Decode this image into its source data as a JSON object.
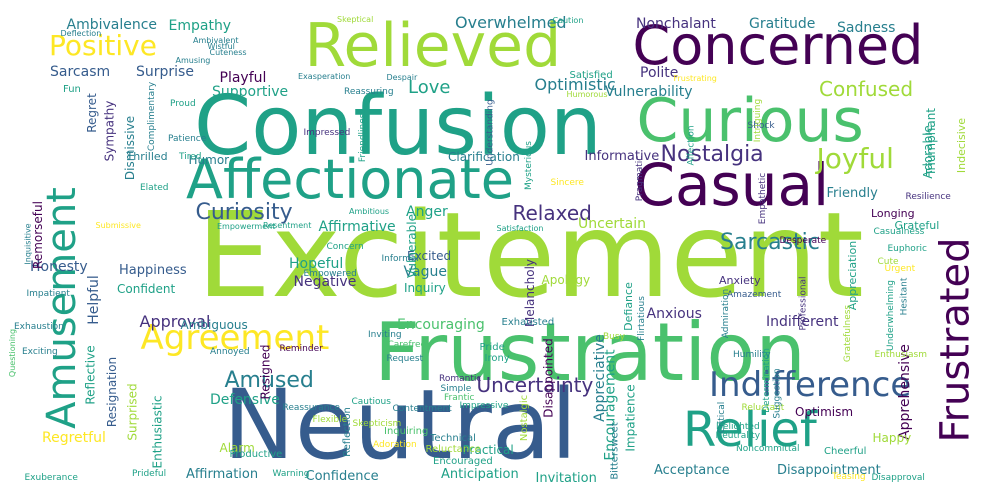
{
  "palette": {
    "background": "#ffffff",
    "colors": [
      "#440154",
      "#46327e",
      "#365c8d",
      "#277f8e",
      "#1fa187",
      "#4ac16d",
      "#a0da39",
      "#fde725"
    ]
  },
  "words": [
    "Excitement",
    "Neutral",
    "Confusion",
    "Frustration",
    "Relieved",
    "Concerned",
    "Curious",
    "Casual",
    "Affectionate",
    "Amusement",
    "Frustrated",
    "Relief",
    "Agreement",
    "Indifference",
    "Joyful",
    "Positive",
    "Curiosity",
    "Nostalgia",
    "Confused",
    "Amused",
    "Sarcastic",
    "Relaxed",
    "Uncertainty",
    "Love",
    "Optimistic",
    "Ambivalence",
    "Empathy",
    "Overwhelmed",
    "Nonchalant",
    "Gratitude",
    "Sadness",
    "Approval",
    "Encouraging",
    "Sarcasm",
    "Surprise",
    "Playful",
    "Polite",
    "Supportive",
    "Vulnerability",
    "Satisfied",
    "Affirmative",
    "Anger",
    "Uncertain",
    "Hopeful",
    "Negative",
    "Excited",
    "Vague",
    "Inquiry",
    "Honesty",
    "Happiness",
    "Confident",
    "Helpful",
    "Reflective",
    "Resignation",
    "Surprised",
    "Regretful",
    "Defensive",
    "Alarm",
    "Affirmation",
    "Confidence",
    "Anticipation",
    "Invitation",
    "Acceptance",
    "Disappointment",
    "Appreciative",
    "Encouragement",
    "Impatience",
    "Disappointed",
    "Nostalgic",
    "Anxious",
    "Indifferent",
    "Apprehensive",
    "Appreciation",
    "Anxiety",
    "Friendly",
    "Longing",
    "Grateful",
    "Happy",
    "Triumphant",
    "Adorable",
    "Indecisive",
    "Regret",
    "Sympathy",
    "Dismissive",
    "Humor",
    "Informative",
    "Clarification",
    "Practical",
    "Ambiguous",
    "Resigned",
    "Remorseful",
    "Apology",
    "Enthusiastic",
    "Optimism",
    "Cheerful",
    "Vulnerable",
    "Melancholy",
    "Defiance",
    "Exhausted",
    "Pride",
    "Irony",
    "Bittersweet",
    "Productive",
    "Reflection",
    "Inquiring",
    "Technical",
    "Reluctance",
    "Encouraged",
    "Prideful",
    "Exuberance",
    "Warning",
    "Annoyed",
    "Reminder",
    "Empowered",
    "Concern",
    "Informal",
    "Inviting",
    "Carefree",
    "Request",
    "Romantic",
    "Simple",
    "Frantic",
    "Impressive",
    "Cautious",
    "Reassurance",
    "Contentment",
    "Flexible",
    "Skepticism",
    "Adoration",
    "Reluctant",
    "Neutrality",
    "Noncommittal",
    "Critical",
    "Disapproval",
    "Teasing",
    "Underwhelming",
    "Urgent",
    "Hesitant",
    "Enthusiasm",
    "Euphoric",
    "Cute",
    "Humility",
    "Suggestion",
    "Delighted",
    "Gratefulness",
    "Determination",
    "Amazement",
    "Professional",
    "Admiration",
    "Flirtatious",
    "Busy",
    "Impatient",
    "Inquisitive",
    "Questioning",
    "Exhaustion",
    "Exciting",
    "Desperate",
    "Empathetic",
    "Resilience",
    "Casualness",
    "Shock",
    "Intriguing",
    "Sincere",
    "Pragmatic",
    "Mysterious",
    "Understanding",
    "Impressed",
    "Friendliness",
    "Affection",
    "Elated",
    "Thrilled",
    "Patience",
    "Tired",
    "Proud",
    "Reassuring",
    "Complimentary",
    "Fun",
    "Amusing",
    "Deflection",
    "Wistful",
    "Cuteness",
    "Ambivalent",
    "Skeptical",
    "Caution",
    "Exasperation",
    "Despair",
    "Frustrating",
    "Humorous",
    "Ambitious",
    "Satisfaction",
    "Empowerment",
    "Resentment",
    "Submissive"
  ]
}
